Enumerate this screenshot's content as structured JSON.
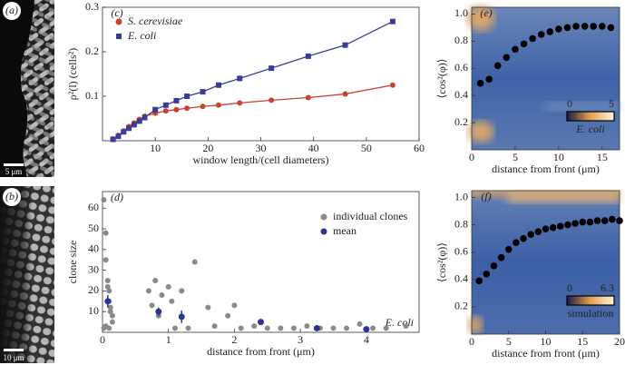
{
  "images": [
    {
      "label": "(a)",
      "scale_bar": "5 μm"
    },
    {
      "label": "(b)",
      "scale_bar": "10 μm"
    }
  ],
  "chart_data": [
    {
      "type": "line",
      "label": "(c)",
      "xlabel": "window length/(cell diameters)",
      "ylabel": "ρ²(l) (cells²)",
      "xlim": [
        0,
        60
      ],
      "ylim": [
        0,
        0.3
      ],
      "xticks": [
        10,
        20,
        30,
        40,
        50,
        60
      ],
      "yticks": [
        0.1,
        0.2,
        0.3
      ],
      "legend": "upper left",
      "series": [
        {
          "name": "S. cerevisiae",
          "color": "#c8432f",
          "marker": "circle",
          "x": [
            2,
            3,
            4,
            5,
            6,
            7,
            8,
            10,
            12,
            14,
            16,
            19,
            22,
            26,
            32,
            39,
            46,
            55
          ],
          "values": [
            0.004,
            0.012,
            0.022,
            0.032,
            0.04,
            0.048,
            0.055,
            0.062,
            0.067,
            0.07,
            0.073,
            0.077,
            0.08,
            0.085,
            0.091,
            0.097,
            0.105,
            0.125
          ]
        },
        {
          "name": "E. coli",
          "color": "#3a3d97",
          "marker": "square",
          "x": [
            2,
            3,
            4,
            5,
            6,
            7,
            8,
            10,
            12,
            14,
            16,
            19,
            22,
            26,
            32,
            39,
            46,
            55
          ],
          "values": [
            0.003,
            0.01,
            0.02,
            0.028,
            0.036,
            0.044,
            0.052,
            0.07,
            0.08,
            0.09,
            0.1,
            0.11,
            0.125,
            0.14,
            0.163,
            0.19,
            0.215,
            0.268
          ]
        }
      ]
    },
    {
      "type": "scatter",
      "label": "(d)",
      "xlabel": "distance from front (μm)",
      "ylabel": "clone size",
      "annotation": "E. coli",
      "xlim": [
        0,
        4.8
      ],
      "ylim": [
        0,
        68
      ],
      "xticks": [
        0,
        1,
        2,
        3,
        4
      ],
      "yticks": [
        10,
        20,
        30,
        40,
        50,
        60
      ],
      "legend": "upper right",
      "series": [
        {
          "name": "individual clones",
          "color": "#8a8a8a",
          "x": [
            0.02,
            0.05,
            0.05,
            0.08,
            0.1,
            0.1,
            0.12,
            0.15,
            0.15,
            0.05,
            0.1,
            0.02,
            0.08,
            0.12,
            0.7,
            0.75,
            0.8,
            0.85,
            0.9,
            1.0,
            1.05,
            1.1,
            1.2,
            1.3,
            1.4,
            1.6,
            1.7,
            1.9,
            2.0,
            2.1,
            2.3,
            2.5,
            2.7,
            2.9,
            3.1,
            3.3,
            3.5,
            3.7,
            3.9,
            4.1,
            4.3,
            4.6
          ],
          "values": [
            64,
            48,
            35,
            25,
            20,
            15,
            12,
            8,
            5,
            3,
            2,
            2,
            22,
            10,
            20,
            13,
            25,
            8,
            18,
            22,
            15,
            2,
            20,
            2,
            34,
            12,
            3,
            8,
            13,
            2,
            3,
            2,
            2,
            2,
            3,
            2,
            2,
            2,
            4,
            2,
            2,
            3
          ]
        },
        {
          "name": "mean",
          "color": "#2e3590",
          "x": [
            0.08,
            0.85,
            1.2,
            2.4,
            3.25,
            4.0
          ],
          "values": [
            15,
            10,
            7.5,
            5,
            2,
            1.5
          ],
          "errors": [
            3,
            2,
            3,
            1,
            0.5,
            0.5
          ]
        }
      ]
    },
    {
      "type": "scatter",
      "label": "(e)",
      "xlabel": "distance from front (μm)",
      "ylabel": "⟨cos²(φ)⟩",
      "xlim": [
        0,
        17
      ],
      "ylim": [
        0,
        1.05
      ],
      "xticks": [
        0,
        5,
        10,
        15
      ],
      "yticks": [
        0.2,
        0.4,
        0.6,
        0.8,
        {
          "value": 1,
          "label": "1.0"
        }
      ],
      "colorbar": {
        "ticks": [
          0,
          5
        ],
        "label": "E. coli"
      },
      "series": [
        {
          "color": "#000000",
          "x": [
            1,
            2,
            3,
            4,
            5,
            6,
            7,
            8,
            9,
            10,
            11,
            12,
            13,
            14,
            15,
            16
          ],
          "values": [
            0.49,
            0.52,
            0.62,
            0.68,
            0.74,
            0.78,
            0.82,
            0.85,
            0.87,
            0.89,
            0.9,
            0.91,
            0.91,
            0.91,
            0.91,
            0.9
          ]
        }
      ]
    },
    {
      "type": "scatter",
      "label": "(f)",
      "xlabel": "distance from front (μm)",
      "ylabel": "⟨cos²(φ)⟩",
      "xlim": [
        0,
        20
      ],
      "ylim": [
        0,
        1.05
      ],
      "xticks": [
        0,
        5,
        10,
        15,
        20
      ],
      "yticks": [
        0.2,
        0.4,
        0.6,
        0.8,
        {
          "value": 1,
          "label": "1.0"
        }
      ],
      "colorbar": {
        "ticks": [
          0,
          6.3
        ],
        "label": "simulation"
      },
      "series": [
        {
          "color": "#000000",
          "x": [
            1,
            2,
            3,
            4,
            5,
            6,
            7,
            8,
            9,
            10,
            11,
            12,
            13,
            14,
            15,
            16,
            17,
            18,
            19,
            20
          ],
          "values": [
            0.39,
            0.44,
            0.5,
            0.56,
            0.62,
            0.67,
            0.7,
            0.73,
            0.75,
            0.77,
            0.78,
            0.79,
            0.8,
            0.81,
            0.82,
            0.82,
            0.83,
            0.83,
            0.84,
            0.83
          ]
        }
      ]
    }
  ]
}
